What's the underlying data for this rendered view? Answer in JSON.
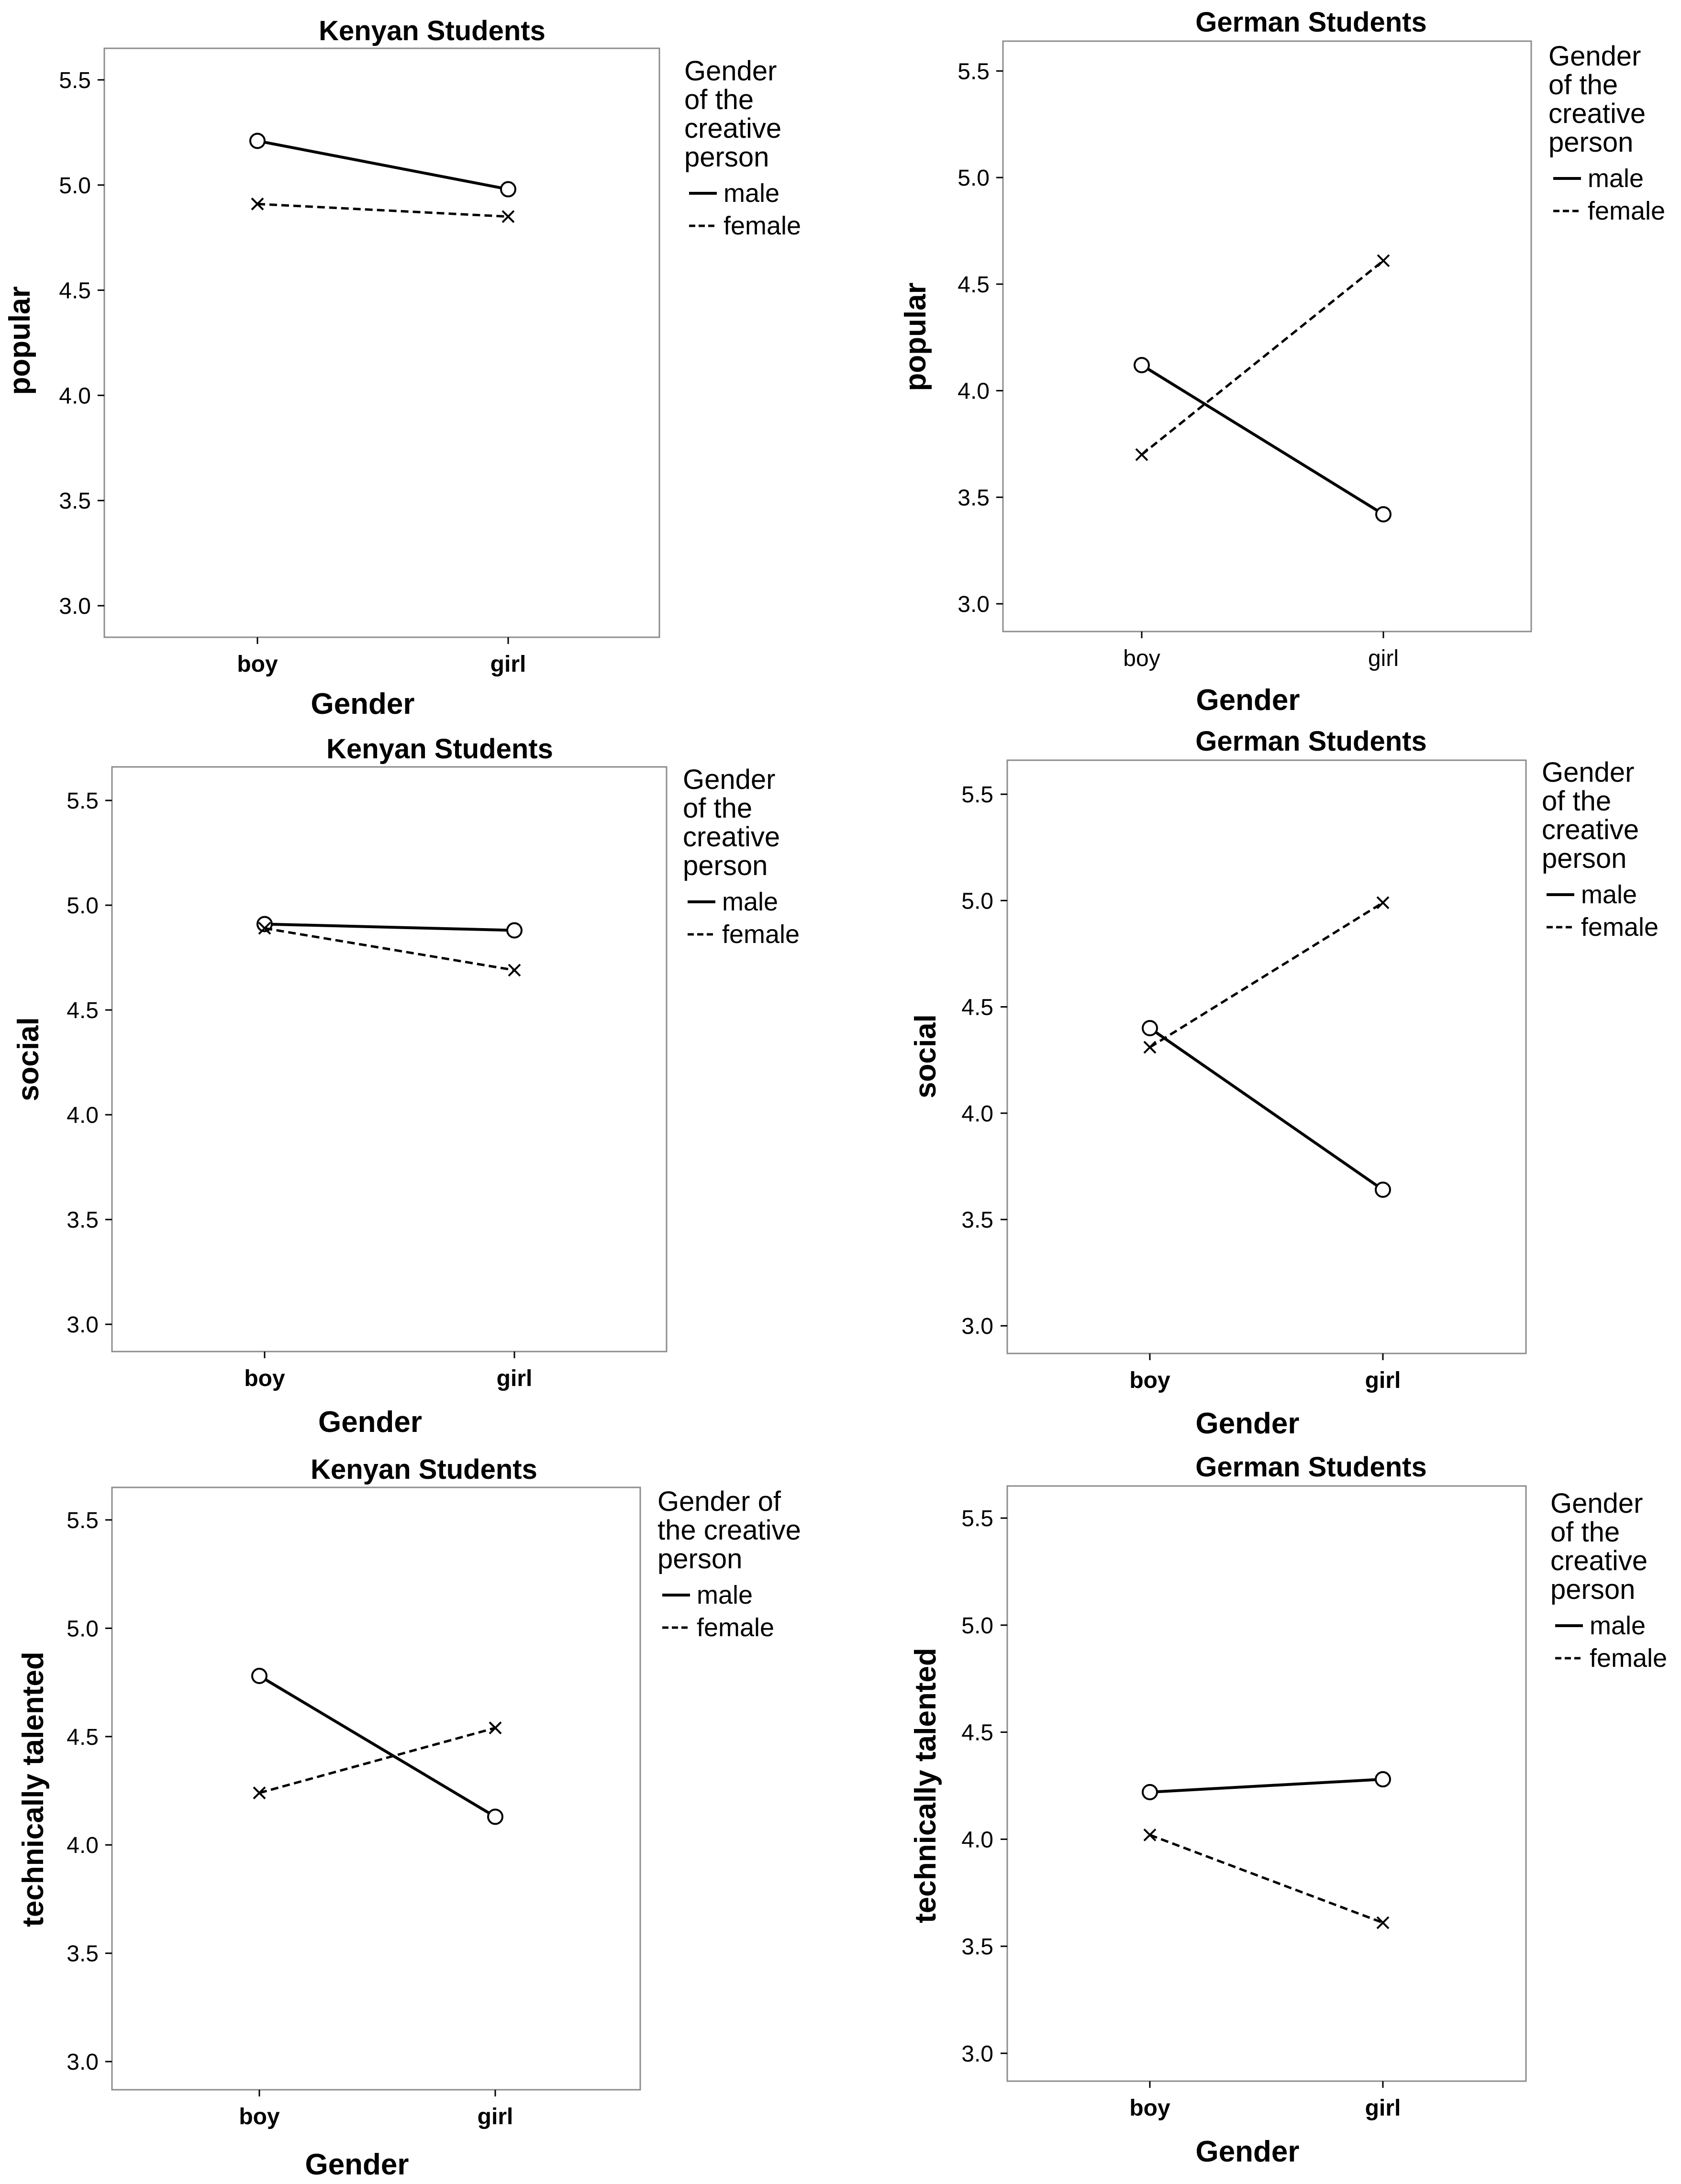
{
  "figure": {
    "panel_count": 6,
    "x_axis_label": "Gender",
    "legend_title": "Gender of the creative person"
  },
  "colors": {
    "background": "#ffffff",
    "ink": "#000000",
    "frame": "#8c8c8c"
  },
  "chart_data": [
    {
      "type": "line",
      "title": "Kenyan Students",
      "xlabel": "Gender",
      "ylabel": "popular",
      "categories": [
        "boy",
        "girl"
      ],
      "ylim": [
        2.85,
        5.65
      ],
      "yticks": [
        "3.0",
        "3.5",
        "4.0",
        "4.5",
        "5.0",
        "5.5"
      ],
      "legend_title_lines": [
        "Gender",
        "of the",
        "creative",
        "person"
      ],
      "cat_bold": true,
      "series": [
        {
          "name": "male",
          "style": "solid",
          "marker": "circle",
          "values": [
            5.21,
            4.98
          ]
        },
        {
          "name": "female",
          "style": "dashed",
          "marker": "x",
          "values": [
            4.91,
            4.85
          ]
        }
      ]
    },
    {
      "type": "line",
      "title": "German Students",
      "xlabel": "Gender",
      "ylabel": "popular",
      "categories": [
        "boy",
        "girl"
      ],
      "ylim": [
        2.87,
        5.64
      ],
      "yticks": [
        "3.0",
        "3.5",
        "4.0",
        "4.5",
        "5.0",
        "5.5"
      ],
      "legend_title_lines": [
        "Gender",
        "of the",
        "creative",
        "person"
      ],
      "cat_bold": false,
      "series": [
        {
          "name": "male",
          "style": "solid",
          "marker": "circle",
          "values": [
            4.12,
            3.42
          ]
        },
        {
          "name": "female",
          "style": "dashed",
          "marker": "x",
          "values": [
            3.7,
            4.61
          ]
        }
      ]
    },
    {
      "type": "line",
      "title": "Kenyan Students",
      "xlabel": "Gender",
      "ylabel": "social",
      "categories": [
        "boy",
        "girl"
      ],
      "ylim": [
        2.87,
        5.66
      ],
      "yticks": [
        "3.0",
        "3.5",
        "4.0",
        "4.5",
        "5.0",
        "5.5"
      ],
      "legend_title_lines": [
        "Gender",
        "of the",
        "creative",
        "person"
      ],
      "cat_bold": true,
      "series": [
        {
          "name": "male",
          "style": "solid",
          "marker": "circle",
          "values": [
            4.91,
            4.88
          ]
        },
        {
          "name": "female",
          "style": "dashed",
          "marker": "x",
          "values": [
            4.89,
            4.69
          ]
        }
      ]
    },
    {
      "type": "line",
      "title": "German Students",
      "xlabel": "Gender",
      "ylabel": "social",
      "categories": [
        "boy",
        "girl"
      ],
      "ylim": [
        2.87,
        5.66
      ],
      "yticks": [
        "3.0",
        "3.5",
        "4.0",
        "4.5",
        "5.0",
        "5.5"
      ],
      "legend_title_lines": [
        "Gender",
        "of the",
        "creative",
        "person"
      ],
      "cat_bold": true,
      "series": [
        {
          "name": "male",
          "style": "solid",
          "marker": "circle",
          "values": [
            4.4,
            3.64
          ]
        },
        {
          "name": "female",
          "style": "dashed",
          "marker": "x",
          "values": [
            4.31,
            4.99
          ]
        }
      ]
    },
    {
      "type": "line",
      "title": "Kenyan Students",
      "xlabel": "Gender",
      "ylabel": "technically talented",
      "categories": [
        "boy",
        "girl"
      ],
      "ylim": [
        2.87,
        5.65
      ],
      "yticks": [
        "3.0",
        "3.5",
        "4.0",
        "4.5",
        "5.0",
        "5.5"
      ],
      "legend_title_lines": [
        "Gender of",
        "the creative",
        "person"
      ],
      "cat_bold": true,
      "series": [
        {
          "name": "male",
          "style": "solid",
          "marker": "circle",
          "values": [
            4.78,
            4.13
          ]
        },
        {
          "name": "female",
          "style": "dashed",
          "marker": "x",
          "values": [
            4.24,
            4.54
          ]
        }
      ]
    },
    {
      "type": "line",
      "title": "German Students",
      "xlabel": "Gender",
      "ylabel": "technically talented",
      "categories": [
        "boy",
        "girl"
      ],
      "ylim": [
        2.87,
        5.65
      ],
      "yticks": [
        "3.0",
        "3.5",
        "4.0",
        "4.5",
        "5.0",
        "5.5"
      ],
      "legend_title_lines": [
        "Gender",
        "of the",
        "creative",
        "person"
      ],
      "cat_bold": true,
      "series": [
        {
          "name": "male",
          "style": "solid",
          "marker": "circle",
          "values": [
            4.22,
            4.28
          ]
        },
        {
          "name": "female",
          "style": "dashed",
          "marker": "x",
          "values": [
            4.02,
            3.61
          ]
        }
      ]
    }
  ]
}
